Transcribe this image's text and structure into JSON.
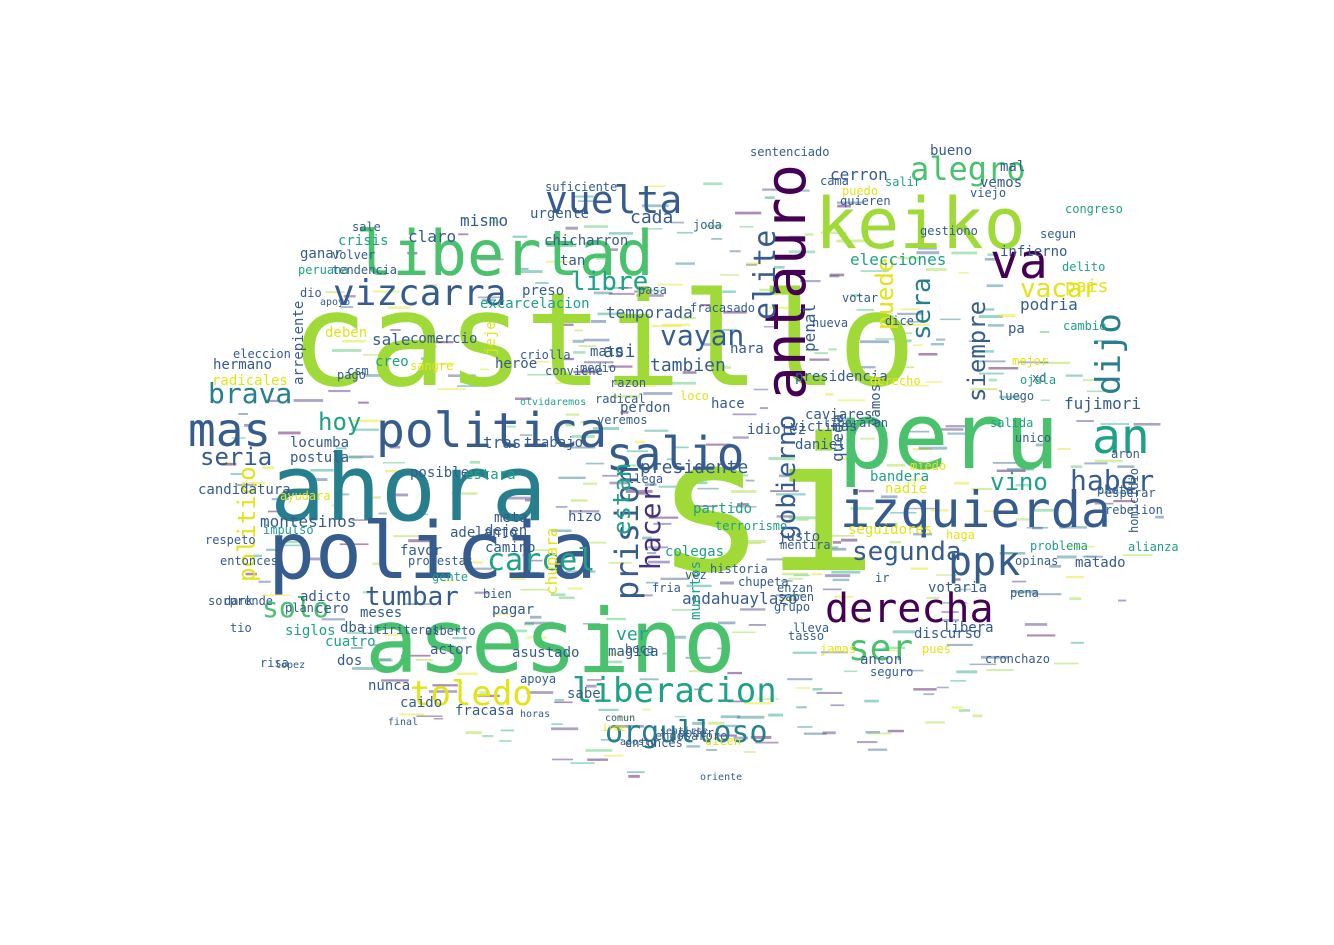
{
  "palette": {
    "lime": "#a0da39",
    "green": "#4ac16d",
    "teal": "#1fa187",
    "cyan": "#277f8e",
    "blue": "#365c8d",
    "indigo": "#46327e",
    "purple": "#440154",
    "yellow": "#e3e418"
  },
  "words": [
    {
      "text": "castillo",
      "color": "lime"
    },
    {
      "text": "si",
      "color": "lime"
    },
    {
      "text": "ahora",
      "color": "cyan"
    },
    {
      "text": "asesino",
      "color": "green"
    },
    {
      "text": "policia",
      "color": "blue"
    },
    {
      "text": "peru",
      "color": "green"
    },
    {
      "text": "keiko",
      "color": "lime"
    },
    {
      "text": "libertad",
      "color": "green"
    },
    {
      "text": "antauro",
      "color": "purple"
    },
    {
      "text": "izquierda",
      "color": "blue"
    },
    {
      "text": "politica",
      "color": "blue"
    },
    {
      "text": "mas",
      "color": "blue"
    },
    {
      "text": "salio",
      "color": "blue"
    },
    {
      "text": "derecha",
      "color": "purple"
    },
    {
      "text": "vuelta",
      "color": "blue"
    },
    {
      "text": "va",
      "color": "purple"
    },
    {
      "text": "an",
      "color": "teal"
    },
    {
      "text": "vizcarra",
      "color": "blue"
    },
    {
      "text": "liberacion",
      "color": "teal"
    },
    {
      "text": "toledo",
      "color": "yellow"
    },
    {
      "text": "orgulloso",
      "color": "cyan"
    },
    {
      "text": "ppk",
      "color": "blue"
    },
    {
      "text": "ser",
      "color": "green"
    },
    {
      "text": "dijo",
      "color": "cyan"
    },
    {
      "text": "alegro",
      "color": "green"
    },
    {
      "text": "brava",
      "color": "cyan"
    },
    {
      "text": "carcel",
      "color": "teal"
    },
    {
      "text": "prision",
      "color": "blue"
    },
    {
      "text": "tumbar",
      "color": "blue"
    },
    {
      "text": "segunda",
      "color": "blue"
    },
    {
      "text": "haber",
      "color": "blue"
    },
    {
      "text": "vacar",
      "color": "yellow"
    },
    {
      "text": "elite",
      "color": "blue"
    },
    {
      "text": "hacer",
      "color": "indigo"
    },
    {
      "text": "vayan",
      "color": "blue"
    },
    {
      "text": "solo",
      "color": "green"
    },
    {
      "text": "gobierno",
      "color": "blue"
    },
    {
      "text": "puede",
      "color": "yellow"
    },
    {
      "text": "sera",
      "color": "cyan"
    },
    {
      "text": "libre",
      "color": "teal"
    },
    {
      "text": "hoy",
      "color": "teal"
    },
    {
      "text": "seria",
      "color": "blue"
    },
    {
      "text": "politico",
      "color": "yellow"
    },
    {
      "text": "vino",
      "color": "teal"
    },
    {
      "text": "siempre",
      "color": "blue"
    },
    {
      "text": "estan",
      "color": "teal"
    },
    {
      "text": "presidente",
      "color": "blue"
    },
    {
      "text": "andahuaylazo",
      "color": "blue"
    },
    {
      "text": "montesinos",
      "color": "blue"
    },
    {
      "text": "fujimori",
      "color": "blue"
    },
    {
      "text": "candidatura",
      "color": "blue"
    },
    {
      "text": "elecciones",
      "color": "teal"
    },
    {
      "text": "temporada",
      "color": "blue"
    },
    {
      "text": "tambien",
      "color": "blue"
    },
    {
      "text": "asi",
      "color": "blue"
    },
    {
      "text": "ver",
      "color": "teal"
    },
    {
      "text": "pais",
      "color": "yellow"
    },
    {
      "text": "podria",
      "color": "blue"
    },
    {
      "text": "cerron",
      "color": "blue"
    },
    {
      "text": "queda",
      "color": "blue"
    },
    {
      "text": "penal",
      "color": "blue"
    },
    {
      "text": "sale",
      "color": "blue"
    },
    {
      "text": "libera",
      "color": "blue"
    },
    {
      "text": "cada",
      "color": "blue"
    },
    {
      "text": "mismo",
      "color": "blue"
    },
    {
      "text": "claro",
      "color": "blue"
    },
    {
      "text": "crisis",
      "color": "teal"
    },
    {
      "text": "peruana",
      "color": "teal"
    },
    {
      "text": "ganar",
      "color": "blue"
    },
    {
      "text": "dio",
      "color": "blue"
    },
    {
      "text": "sangre",
      "color": "yellow"
    },
    {
      "text": "creo",
      "color": "teal"
    },
    {
      "text": "hermano",
      "color": "blue"
    },
    {
      "text": "radicales",
      "color": "yellow"
    },
    {
      "text": "arrepiente",
      "color": "blue"
    },
    {
      "text": "locumba",
      "color": "blue"
    },
    {
      "text": "postula",
      "color": "blue"
    },
    {
      "text": "posible",
      "color": "blue"
    },
    {
      "text": "tras",
      "color": "blue"
    },
    {
      "text": "estara",
      "color": "teal"
    },
    {
      "text": "dejen",
      "color": "blue"
    },
    {
      "text": "camino",
      "color": "blue"
    },
    {
      "text": "meta",
      "color": "blue"
    },
    {
      "text": "hizo",
      "color": "blue"
    },
    {
      "text": "chupara",
      "color": "yellow"
    },
    {
      "text": "pagar",
      "color": "blue"
    },
    {
      "text": "favor",
      "color": "blue"
    },
    {
      "text": "cero",
      "color": "blue"
    },
    {
      "text": "adicto",
      "color": "blue"
    },
    {
      "text": "meses",
      "color": "blue"
    },
    {
      "text": "siglos",
      "color": "teal"
    },
    {
      "text": "dba",
      "color": "blue"
    },
    {
      "text": "cuatro",
      "color": "teal"
    },
    {
      "text": "dos",
      "color": "blue"
    },
    {
      "text": "nunca",
      "color": "blue"
    },
    {
      "text": "caido",
      "color": "blue"
    },
    {
      "text": "fracasa",
      "color": "blue"
    },
    {
      "text": "sabe",
      "color": "blue"
    },
    {
      "text": "asustado",
      "color": "blue"
    },
    {
      "text": "actor",
      "color": "blue"
    },
    {
      "text": "magica",
      "color": "blue"
    },
    {
      "text": "entonces",
      "color": "blue"
    },
    {
      "text": "poder",
      "color": "blue"
    },
    {
      "text": "dicen",
      "color": "yellow"
    },
    {
      "text": "muertos",
      "color": "teal"
    },
    {
      "text": "colegas",
      "color": "teal"
    },
    {
      "text": "justo",
      "color": "blue"
    },
    {
      "text": "seguidores",
      "color": "yellow"
    },
    {
      "text": "chupeta",
      "color": "blue"
    },
    {
      "text": "lleva",
      "color": "blue"
    },
    {
      "text": "jamas",
      "color": "yellow"
    },
    {
      "text": "ancon",
      "color": "blue"
    },
    {
      "text": "discurso",
      "color": "blue"
    },
    {
      "text": "pues",
      "color": "yellow"
    },
    {
      "text": "seguro",
      "color": "blue"
    },
    {
      "text": "votaria",
      "color": "blue"
    },
    {
      "text": "problema",
      "color": "teal"
    },
    {
      "text": "haga",
      "color": "yellow"
    },
    {
      "text": "opinas",
      "color": "blue"
    },
    {
      "text": "matado",
      "color": "blue"
    },
    {
      "text": "photo",
      "color": "blue"
    },
    {
      "text": "rebelion",
      "color": "blue"
    },
    {
      "text": "aron",
      "color": "blue"
    },
    {
      "text": "unico",
      "color": "blue"
    },
    {
      "text": "salida",
      "color": "teal"
    },
    {
      "text": "luego",
      "color": "blue"
    },
    {
      "text": "mejor",
      "color": "yellow"
    },
    {
      "text": "xd",
      "color": "blue"
    },
    {
      "text": "ojala",
      "color": "teal"
    },
    {
      "text": "pa",
      "color": "blue"
    },
    {
      "text": "cambio",
      "color": "teal"
    },
    {
      "text": "segun",
      "color": "blue"
    },
    {
      "text": "delito",
      "color": "teal"
    },
    {
      "text": "infierno",
      "color": "blue"
    },
    {
      "text": "viejo",
      "color": "blue"
    },
    {
      "text": "vemos",
      "color": "blue"
    },
    {
      "text": "mal",
      "color": "blue"
    },
    {
      "text": "bueno",
      "color": "blue"
    },
    {
      "text": "congreso",
      "color": "teal"
    },
    {
      "text": "sentenciado",
      "color": "blue"
    },
    {
      "text": "quieren",
      "color": "blue"
    },
    {
      "text": "cama",
      "color": "blue"
    },
    {
      "text": "puedo",
      "color": "yellow"
    },
    {
      "text": "salir",
      "color": "teal"
    },
    {
      "text": "votar",
      "color": "blue"
    },
    {
      "text": "dice",
      "color": "blue"
    },
    {
      "text": "nueva",
      "color": "blue"
    },
    {
      "text": "joda",
      "color": "blue"
    },
    {
      "text": "fracasado",
      "color": "blue"
    },
    {
      "text": "pasa",
      "color": "blue"
    },
    {
      "text": "preso",
      "color": "blue"
    },
    {
      "text": "tan",
      "color": "blue"
    },
    {
      "text": "excarcelacion",
      "color": "teal"
    },
    {
      "text": "heroe",
      "color": "blue"
    },
    {
      "text": "jeje",
      "color": "yellow"
    },
    {
      "text": "mato",
      "color": "blue"
    },
    {
      "text": "medio",
      "color": "blue"
    },
    {
      "text": "razon",
      "color": "blue"
    },
    {
      "text": "radical",
      "color": "blue"
    },
    {
      "text": "perdon",
      "color": "blue"
    },
    {
      "text": "veremos",
      "color": "blue"
    },
    {
      "text": "loco",
      "color": "yellow"
    },
    {
      "text": "hace",
      "color": "blue"
    },
    {
      "text": "idiotez",
      "color": "blue"
    },
    {
      "text": "vamos",
      "color": "blue"
    },
    {
      "text": "hara",
      "color": "blue"
    },
    {
      "text": "presidencia",
      "color": "blue"
    },
    {
      "text": "derecho",
      "color": "yellow"
    },
    {
      "text": "bandera",
      "color": "teal"
    },
    {
      "text": "nadie",
      "color": "yellow"
    },
    {
      "text": "miedo",
      "color": "yellow"
    },
    {
      "text": "daniel",
      "color": "blue"
    },
    {
      "text": "victimas",
      "color": "blue"
    },
    {
      "text": "caviares",
      "color": "blue"
    },
    {
      "text": "llega",
      "color": "blue"
    },
    {
      "text": "partido",
      "color": "teal"
    },
    {
      "text": "terrorismo",
      "color": "teal"
    },
    {
      "text": "vez",
      "color": "blue"
    },
    {
      "text": "trabajo",
      "color": "blue"
    },
    {
      "text": "suficiente",
      "color": "blue"
    },
    {
      "text": "urgente",
      "color": "blue"
    },
    {
      "text": "chicharron",
      "color": "blue"
    },
    {
      "text": "sale",
      "color": "blue"
    },
    {
      "text": "volver",
      "color": "blue"
    },
    {
      "text": "tendencia",
      "color": "blue"
    },
    {
      "text": "comercio",
      "color": "blue"
    },
    {
      "text": "eleccion",
      "color": "blue"
    },
    {
      "text": "pago",
      "color": "blue"
    },
    {
      "text": "csm",
      "color": "blue"
    },
    {
      "text": "deben",
      "color": "yellow"
    },
    {
      "text": "adelanto",
      "color": "blue"
    },
    {
      "text": "protestas",
      "color": "blue"
    },
    {
      "text": "gente",
      "color": "teal"
    },
    {
      "text": "plan",
      "color": "blue"
    },
    {
      "text": "bien",
      "color": "blue"
    },
    {
      "text": "boca",
      "color": "blue"
    },
    {
      "text": "alberto",
      "color": "blue"
    },
    {
      "text": "sorprende",
      "color": "blue"
    },
    {
      "text": "ayudara",
      "color": "yellow"
    },
    {
      "text": "impulso",
      "color": "teal"
    },
    {
      "text": "respeto",
      "color": "blue"
    },
    {
      "text": "risa",
      "color": "blue"
    },
    {
      "text": "dark",
      "color": "blue"
    },
    {
      "text": "tio",
      "color": "blue"
    },
    {
      "text": "entonces",
      "color": "blue"
    },
    {
      "text": "titiriteros",
      "color": "blue"
    },
    {
      "text": "endosarore",
      "color": "blue"
    },
    {
      "text": "homicidio",
      "color": "blue"
    },
    {
      "text": "esperar",
      "color": "blue"
    },
    {
      "text": "alianza",
      "color": "teal"
    },
    {
      "text": "pena",
      "color": "blue"
    },
    {
      "text": "cronchazo",
      "color": "blue"
    },
    {
      "text": "mentira",
      "color": "blue"
    },
    {
      "text": "grupo",
      "color": "blue"
    },
    {
      "text": "tasso",
      "color": "blue"
    },
    {
      "text": "saben",
      "color": "blue"
    },
    {
      "text": "enzan",
      "color": "blue"
    },
    {
      "text": "ir",
      "color": "blue"
    },
    {
      "text": "fria",
      "color": "blue"
    },
    {
      "text": "historia",
      "color": "blue"
    },
    {
      "text": "gestiono",
      "color": "blue"
    },
    {
      "text": "liberaron",
      "color": "blue"
    },
    {
      "text": "apoya",
      "color": "blue"
    },
    {
      "text": "criolla",
      "color": "blue"
    },
    {
      "text": "conviene",
      "color": "blue"
    },
    {
      "text": "oriente",
      "color": "blue"
    },
    {
      "text": "sentirse",
      "color": "blue"
    },
    {
      "text": "agosto",
      "color": "blue"
    },
    {
      "text": "comun",
      "color": "blue"
    },
    {
      "text": "irme",
      "color": "yellow"
    },
    {
      "text": "horas",
      "color": "blue"
    },
    {
      "text": "final",
      "color": "blue"
    },
    {
      "text": "lopez",
      "color": "blue"
    },
    {
      "text": "apoyo",
      "color": "blue"
    },
    {
      "text": "olvidaremos",
      "color": "teal"
    }
  ]
}
